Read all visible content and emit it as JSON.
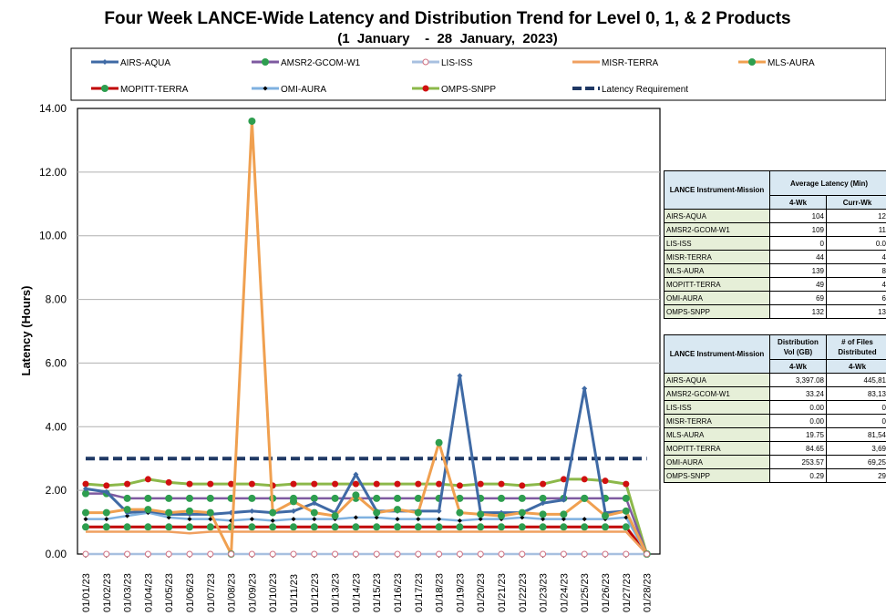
{
  "title": "Four Week LANCE-Wide Latency and Distribution Trend for Level 0, 1, & 2 Products",
  "subtitle": "(1  January    -  28  January,  2023)",
  "chart_data": {
    "type": "line",
    "ylabel": "Latency (Hours)",
    "ylim": [
      0,
      14
    ],
    "yticks": [
      "0.00",
      "2.00",
      "4.00",
      "6.00",
      "8.00",
      "10.00",
      "12.00",
      "14.00"
    ],
    "grid": true,
    "legend_position": "top",
    "x": [
      "01/01/23",
      "01/02/23",
      "01/03/23",
      "01/04/23",
      "01/05/23",
      "01/06/23",
      "01/07/23",
      "01/08/23",
      "01/09/23",
      "01/10/23",
      "01/11/23",
      "01/12/23",
      "01/13/23",
      "01/14/23",
      "01/15/23",
      "01/16/23",
      "01/17/23",
      "01/18/23",
      "01/19/23",
      "01/20/23",
      "01/21/23",
      "01/22/23",
      "01/23/23",
      "01/24/23",
      "01/25/23",
      "01/26/23",
      "01/27/23",
      "01/28/23"
    ],
    "series": [
      {
        "name": "AIRS-AQUA",
        "color": "#3f6aa5",
        "marker": "diamond",
        "values": [
          2.05,
          1.95,
          1.3,
          1.35,
          1.25,
          1.25,
          1.25,
          1.3,
          1.35,
          1.3,
          1.35,
          1.6,
          1.3,
          2.5,
          1.35,
          1.35,
          1.35,
          1.35,
          5.6,
          1.3,
          1.3,
          1.3,
          1.6,
          1.7,
          5.2,
          1.3,
          1.35,
          0.0
        ]
      },
      {
        "name": "AMSR2-GCOM-W1",
        "color": "#7e5aa0",
        "marker": "circle",
        "values": [
          1.9,
          1.9,
          1.75,
          1.75,
          1.75,
          1.75,
          1.75,
          1.75,
          1.75,
          1.75,
          1.75,
          1.75,
          1.75,
          1.75,
          1.75,
          1.75,
          1.75,
          1.75,
          1.75,
          1.75,
          1.75,
          1.75,
          1.75,
          1.75,
          1.75,
          1.75,
          1.75,
          0.0
        ]
      },
      {
        "name": "LIS-ISS",
        "color": "#a8c0e0",
        "marker": "circle-open",
        "values": [
          0.0,
          0.0,
          0.0,
          0.0,
          0.0,
          0.0,
          0.0,
          0.0,
          0.0,
          0.0,
          0.0,
          0.0,
          0.0,
          0.0,
          0.0,
          0.0,
          0.0,
          0.0,
          0.0,
          0.0,
          0.0,
          0.0,
          0.0,
          0.0,
          0.0,
          0.0,
          0.0,
          0.0
        ]
      },
      {
        "name": "MISR-TERRA",
        "color": "#f0a060",
        "marker": "none",
        "values": [
          0.7,
          0.7,
          0.7,
          0.7,
          0.7,
          0.65,
          0.7,
          0.7,
          0.7,
          0.7,
          0.7,
          0.7,
          0.7,
          0.7,
          0.7,
          0.7,
          0.7,
          0.7,
          0.7,
          0.7,
          0.7,
          0.7,
          0.7,
          0.7,
          0.7,
          0.7,
          0.7,
          0.0
        ]
      },
      {
        "name": "MLS-AURA",
        "color": "#f0a050",
        "marker": "circle",
        "values": [
          1.3,
          1.3,
          1.4,
          1.4,
          1.3,
          1.35,
          1.3,
          0.0,
          13.6,
          1.3,
          1.65,
          1.3,
          1.2,
          1.85,
          1.3,
          1.4,
          1.3,
          3.5,
          1.3,
          1.25,
          1.2,
          1.3,
          1.25,
          1.25,
          1.75,
          1.2,
          1.35,
          0.0
        ]
      },
      {
        "name": "MOPITT-TERRA",
        "color": "#c00000",
        "marker": "circle",
        "values": [
          0.85,
          0.85,
          0.85,
          0.85,
          0.85,
          0.85,
          0.85,
          0.85,
          0.85,
          0.85,
          0.85,
          0.85,
          0.85,
          0.85,
          0.85,
          0.85,
          0.85,
          0.85,
          0.85,
          0.85,
          0.85,
          0.85,
          0.85,
          0.85,
          0.85,
          0.85,
          0.85,
          0.0
        ]
      },
      {
        "name": "OMI-AURA",
        "color": "#7fb1e0",
        "marker": "diamond-black",
        "values": [
          1.1,
          1.1,
          1.2,
          1.3,
          1.15,
          1.1,
          1.1,
          1.05,
          1.1,
          1.05,
          1.1,
          1.1,
          1.1,
          1.15,
          1.15,
          1.1,
          1.1,
          1.1,
          1.05,
          1.1,
          1.1,
          1.15,
          1.1,
          1.1,
          1.1,
          1.1,
          1.15,
          0.0
        ]
      },
      {
        "name": "OMPS-SNPP",
        "color": "#8cb84a",
        "marker": "circle-red",
        "values": [
          2.2,
          2.15,
          2.2,
          2.35,
          2.25,
          2.2,
          2.2,
          2.2,
          2.2,
          2.15,
          2.2,
          2.2,
          2.2,
          2.2,
          2.2,
          2.2,
          2.2,
          2.2,
          2.15,
          2.2,
          2.2,
          2.15,
          2.2,
          2.35,
          2.35,
          2.3,
          2.2,
          0.0
        ]
      },
      {
        "name": "Latency Requirement",
        "color": "#1f3864",
        "marker": "dash",
        "values": [
          3,
          3,
          3,
          3,
          3,
          3,
          3,
          3,
          3,
          3,
          3,
          3,
          3,
          3,
          3,
          3,
          3,
          3,
          3,
          3,
          3,
          3,
          3,
          3,
          3,
          3,
          3,
          3
        ]
      }
    ]
  },
  "latency_table": {
    "col1_header": "LANCE Instrument-Mission",
    "col2_header": "Average Latency (Min)",
    "sub_4wk": "4-Wk",
    "sub_curr": "Curr-Wk",
    "rows": [
      {
        "name": "AIRS-AQUA",
        "four_wk": "104",
        "curr": "12"
      },
      {
        "name": "AMSR2-GCOM-W1",
        "four_wk": "109",
        "curr": "11"
      },
      {
        "name": "LIS-ISS",
        "four_wk": "0",
        "curr": "0.0"
      },
      {
        "name": "MISR-TERRA",
        "four_wk": "44",
        "curr": "4"
      },
      {
        "name": "MLS-AURA",
        "four_wk": "139",
        "curr": "8"
      },
      {
        "name": "MOPITT-TERRA",
        "four_wk": "49",
        "curr": "4"
      },
      {
        "name": "OMI-AURA",
        "four_wk": "69",
        "curr": "6"
      },
      {
        "name": "OMPS-SNPP",
        "four_wk": "132",
        "curr": "13"
      }
    ]
  },
  "distribution_table": {
    "col1_header": "LANCE Instrument-Mission",
    "col2_header": "Distribution Vol (GB)",
    "col3_header": "# of Files Distributed",
    "sub_col2": "4-Wk",
    "sub_col3": "4-Wk",
    "rows": [
      {
        "name": "AIRS-AQUA",
        "vol": "3,397.08",
        "files": "445,81"
      },
      {
        "name": "AMSR2-GCOM-W1",
        "vol": "33.24",
        "files": "83,13"
      },
      {
        "name": "LIS-ISS",
        "vol": "0.00",
        "files": "0"
      },
      {
        "name": "MISR-TERRA",
        "vol": "0.00",
        "files": "0"
      },
      {
        "name": "MLS-AURA",
        "vol": "19.75",
        "files": "81,54"
      },
      {
        "name": "MOPITT-TERRA",
        "vol": "84.65",
        "files": "3,69"
      },
      {
        "name": "OMI-AURA",
        "vol": "253.57",
        "files": "69,25"
      },
      {
        "name": "OMPS-SNPP",
        "vol": "0.29",
        "files": "29"
      }
    ]
  }
}
